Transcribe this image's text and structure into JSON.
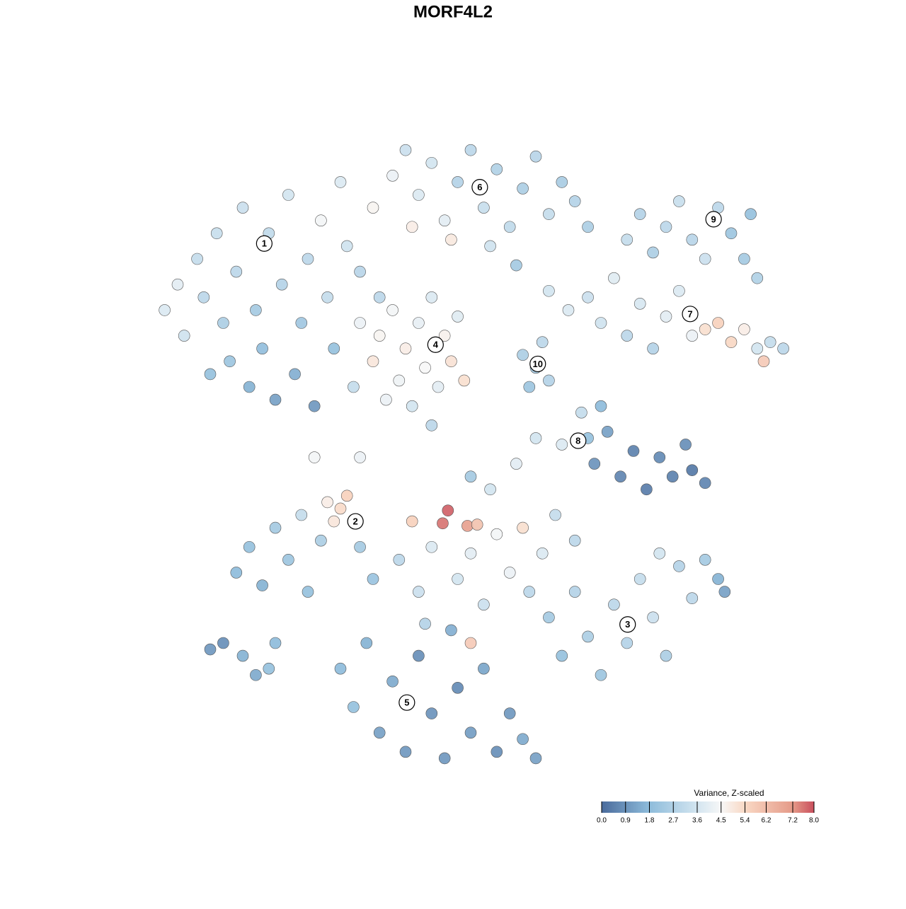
{
  "chart_data": {
    "type": "scatter",
    "title": "MORF4L2",
    "xlim": [
      0,
      100
    ],
    "ylim": [
      0,
      100
    ],
    "color_label": "Variance, Z-scaled",
    "colorbar_lim": [
      0,
      8
    ],
    "colorbar_ticks": [
      {
        "value": 0,
        "label": "0.0"
      },
      0.9,
      1.8,
      2.7,
      3.6,
      4.5,
      5.4,
      6.2,
      7.2,
      {
        "value": 8,
        "label": "8.0"
      }
    ],
    "colorscale": [
      {
        "value": 0,
        "color": "#4a6b9c"
      },
      {
        "value": 1.8,
        "color": "#8ebcdb"
      },
      {
        "value": 3.6,
        "color": "#d3e5f0"
      },
      {
        "value": 4.5,
        "color": "#f7f7f7"
      },
      {
        "value": 5.4,
        "color": "#f9d8c4"
      },
      {
        "value": 7.2,
        "color": "#e59a88"
      },
      {
        "value": 8,
        "color": "#c94f5d"
      }
    ],
    "clusters": [
      {
        "label": "1",
        "x": 18.3,
        "y": 82.4
      },
      {
        "label": "2",
        "x": 32.3,
        "y": 39.0
      },
      {
        "label": "3",
        "x": 74.1,
        "y": 22.9
      },
      {
        "label": "4",
        "x": 44.6,
        "y": 66.6
      },
      {
        "label": "5",
        "x": 40.2,
        "y": 10.7
      },
      {
        "label": "6",
        "x": 51.4,
        "y": 91.2
      },
      {
        "label": "7",
        "x": 83.7,
        "y": 71.4
      },
      {
        "label": "8",
        "x": 66.5,
        "y": 51.6
      },
      {
        "label": "9",
        "x": 87.3,
        "y": 86.2
      },
      {
        "label": "10",
        "x": 60.3,
        "y": 63.6
      }
    ],
    "points": [
      {
        "x": 3,
        "y": 72,
        "value": 3.8
      },
      {
        "x": 5,
        "y": 76,
        "value": 4.0
      },
      {
        "x": 6,
        "y": 68,
        "value": 3.5
      },
      {
        "x": 8,
        "y": 80,
        "value": 3.2
      },
      {
        "x": 9,
        "y": 74,
        "value": 3.0
      },
      {
        "x": 11,
        "y": 84,
        "value": 3.3
      },
      {
        "x": 12,
        "y": 70,
        "value": 2.6
      },
      {
        "x": 13,
        "y": 64,
        "value": 2.2
      },
      {
        "x": 14,
        "y": 78,
        "value": 3.0
      },
      {
        "x": 15,
        "y": 88,
        "value": 3.4
      },
      {
        "x": 16,
        "y": 60,
        "value": 1.6
      },
      {
        "x": 17,
        "y": 72,
        "value": 2.4
      },
      {
        "x": 18,
        "y": 66,
        "value": 1.9
      },
      {
        "x": 19,
        "y": 84,
        "value": 3.1
      },
      {
        "x": 20,
        "y": 58,
        "value": 1.2
      },
      {
        "x": 21,
        "y": 76,
        "value": 2.8
      },
      {
        "x": 22,
        "y": 90,
        "value": 3.6
      },
      {
        "x": 23,
        "y": 62,
        "value": 1.5
      },
      {
        "x": 24,
        "y": 70,
        "value": 2.3
      },
      {
        "x": 25,
        "y": 80,
        "value": 3.0
      },
      {
        "x": 26,
        "y": 57,
        "value": 1.0
      },
      {
        "x": 27,
        "y": 86,
        "value": 4.4
      },
      {
        "x": 28,
        "y": 74,
        "value": 3.2
      },
      {
        "x": 29,
        "y": 66,
        "value": 2.0
      },
      {
        "x": 30,
        "y": 92,
        "value": 3.8
      },
      {
        "x": 31,
        "y": 82,
        "value": 3.5
      },
      {
        "x": 33,
        "y": 78,
        "value": 2.9
      },
      {
        "x": 35,
        "y": 88,
        "value": 4.6
      },
      {
        "x": 36,
        "y": 74,
        "value": 3.0
      },
      {
        "x": 38,
        "y": 93,
        "value": 4.2
      },
      {
        "x": 32,
        "y": 60,
        "value": 3.2
      },
      {
        "x": 10,
        "y": 62,
        "value": 2.0
      },
      {
        "x": 40,
        "y": 97,
        "value": 3.4
      },
      {
        "x": 42,
        "y": 90,
        "value": 3.8
      },
      {
        "x": 44,
        "y": 95,
        "value": 3.6
      },
      {
        "x": 46,
        "y": 86,
        "value": 4.0
      },
      {
        "x": 48,
        "y": 92,
        "value": 2.8
      },
      {
        "x": 50,
        "y": 97,
        "value": 3.0
      },
      {
        "x": 52,
        "y": 88,
        "value": 3.3
      },
      {
        "x": 54,
        "y": 94,
        "value": 2.7
      },
      {
        "x": 56,
        "y": 85,
        "value": 3.1
      },
      {
        "x": 58,
        "y": 91,
        "value": 2.6
      },
      {
        "x": 60,
        "y": 96,
        "value": 2.9
      },
      {
        "x": 62,
        "y": 87,
        "value": 3.2
      },
      {
        "x": 64,
        "y": 92,
        "value": 2.5
      },
      {
        "x": 66,
        "y": 89,
        "value": 2.8
      },
      {
        "x": 68,
        "y": 85,
        "value": 2.6
      },
      {
        "x": 41,
        "y": 85,
        "value": 4.8
      },
      {
        "x": 47,
        "y": 83,
        "value": 4.9
      },
      {
        "x": 53,
        "y": 82,
        "value": 3.5
      },
      {
        "x": 57,
        "y": 79,
        "value": 2.4
      },
      {
        "x": 33,
        "y": 70,
        "value": 4.2
      },
      {
        "x": 35,
        "y": 64,
        "value": 5.0
      },
      {
        "x": 36,
        "y": 68,
        "value": 4.6
      },
      {
        "x": 38,
        "y": 72,
        "value": 4.4
      },
      {
        "x": 39,
        "y": 61,
        "value": 4.3
      },
      {
        "x": 40,
        "y": 66,
        "value": 4.8
      },
      {
        "x": 42,
        "y": 70,
        "value": 4.1
      },
      {
        "x": 43,
        "y": 63,
        "value": 4.5
      },
      {
        "x": 44,
        "y": 74,
        "value": 3.8
      },
      {
        "x": 45,
        "y": 60,
        "value": 4.0
      },
      {
        "x": 46,
        "y": 68,
        "value": 4.7
      },
      {
        "x": 47,
        "y": 64,
        "value": 5.1
      },
      {
        "x": 48,
        "y": 71,
        "value": 3.9
      },
      {
        "x": 37,
        "y": 58,
        "value": 4.2
      },
      {
        "x": 41,
        "y": 57,
        "value": 3.6
      },
      {
        "x": 49,
        "y": 61,
        "value": 5.2
      },
      {
        "x": 74,
        "y": 83,
        "value": 3.2
      },
      {
        "x": 76,
        "y": 87,
        "value": 2.8
      },
      {
        "x": 78,
        "y": 81,
        "value": 2.6
      },
      {
        "x": 80,
        "y": 85,
        "value": 3.0
      },
      {
        "x": 82,
        "y": 89,
        "value": 3.3
      },
      {
        "x": 84,
        "y": 83,
        "value": 2.9
      },
      {
        "x": 86,
        "y": 80,
        "value": 3.4
      },
      {
        "x": 88,
        "y": 88,
        "value": 3.0
      },
      {
        "x": 90,
        "y": 84,
        "value": 2.2
      },
      {
        "x": 92,
        "y": 80,
        "value": 2.4
      },
      {
        "x": 93,
        "y": 87,
        "value": 2.0
      },
      {
        "x": 94,
        "y": 77,
        "value": 2.7
      },
      {
        "x": 62,
        "y": 75,
        "value": 3.6
      },
      {
        "x": 65,
        "y": 72,
        "value": 3.8
      },
      {
        "x": 68,
        "y": 74,
        "value": 3.4
      },
      {
        "x": 70,
        "y": 70,
        "value": 3.5
      },
      {
        "x": 72,
        "y": 77,
        "value": 3.9
      },
      {
        "x": 74,
        "y": 68,
        "value": 3.0
      },
      {
        "x": 76,
        "y": 73,
        "value": 3.7
      },
      {
        "x": 78,
        "y": 66,
        "value": 2.8
      },
      {
        "x": 80,
        "y": 71,
        "value": 4.0
      },
      {
        "x": 82,
        "y": 75,
        "value": 3.8
      },
      {
        "x": 84,
        "y": 68,
        "value": 4.2
      },
      {
        "x": 86,
        "y": 69,
        "value": 5.2
      },
      {
        "x": 88,
        "y": 70,
        "value": 5.6
      },
      {
        "x": 90,
        "y": 67,
        "value": 5.4
      },
      {
        "x": 92,
        "y": 69,
        "value": 4.8
      },
      {
        "x": 94,
        "y": 66,
        "value": 3.6
      },
      {
        "x": 96,
        "y": 67,
        "value": 3.2
      },
      {
        "x": 98,
        "y": 66,
        "value": 3.0
      },
      {
        "x": 95,
        "y": 64,
        "value": 5.8
      },
      {
        "x": 58,
        "y": 65,
        "value": 2.6
      },
      {
        "x": 60,
        "y": 63,
        "value": 2.4
      },
      {
        "x": 62,
        "y": 61,
        "value": 2.8
      },
      {
        "x": 59,
        "y": 60,
        "value": 2.2
      },
      {
        "x": 61,
        "y": 67,
        "value": 3.0
      },
      {
        "x": 67,
        "y": 56,
        "value": 3.2
      },
      {
        "x": 68,
        "y": 52,
        "value": 2.0
      },
      {
        "x": 69,
        "y": 48,
        "value": 0.9
      },
      {
        "x": 71,
        "y": 53,
        "value": 1.2
      },
      {
        "x": 73,
        "y": 46,
        "value": 0.6
      },
      {
        "x": 75,
        "y": 50,
        "value": 0.5
      },
      {
        "x": 77,
        "y": 44,
        "value": 0.4
      },
      {
        "x": 79,
        "y": 49,
        "value": 0.7
      },
      {
        "x": 81,
        "y": 46,
        "value": 0.5
      },
      {
        "x": 83,
        "y": 51,
        "value": 0.8
      },
      {
        "x": 84,
        "y": 47,
        "value": 0.3
      },
      {
        "x": 86,
        "y": 45,
        "value": 0.6
      },
      {
        "x": 70,
        "y": 57,
        "value": 1.8
      },
      {
        "x": 64,
        "y": 51,
        "value": 3.8
      },
      {
        "x": 60,
        "y": 52,
        "value": 3.6
      },
      {
        "x": 14,
        "y": 31,
        "value": 1.8
      },
      {
        "x": 16,
        "y": 35,
        "value": 2.0
      },
      {
        "x": 18,
        "y": 29,
        "value": 1.6
      },
      {
        "x": 20,
        "y": 38,
        "value": 2.4
      },
      {
        "x": 22,
        "y": 33,
        "value": 2.2
      },
      {
        "x": 24,
        "y": 40,
        "value": 3.2
      },
      {
        "x": 25,
        "y": 28,
        "value": 2.0
      },
      {
        "x": 27,
        "y": 36,
        "value": 2.6
      },
      {
        "x": 28,
        "y": 42,
        "value": 4.8
      },
      {
        "x": 30,
        "y": 41,
        "value": 5.3
      },
      {
        "x": 31,
        "y": 43,
        "value": 5.6
      },
      {
        "x": 29,
        "y": 39,
        "value": 5.0
      },
      {
        "x": 33,
        "y": 35,
        "value": 2.4
      },
      {
        "x": 35,
        "y": 30,
        "value": 2.1
      },
      {
        "x": 39,
        "y": 33,
        "value": 3.0
      },
      {
        "x": 41,
        "y": 39,
        "value": 5.6
      },
      {
        "x": 42,
        "y": 28,
        "value": 3.4
      },
      {
        "x": 44,
        "y": 35,
        "value": 3.8
      },
      {
        "x": 45.7,
        "y": 38.7,
        "value": 7.6
      },
      {
        "x": 46.5,
        "y": 40.7,
        "value": 7.8
      },
      {
        "x": 49.5,
        "y": 38.3,
        "value": 7.0
      },
      {
        "x": 51,
        "y": 38.5,
        "value": 6.0
      },
      {
        "x": 48,
        "y": 30,
        "value": 3.6
      },
      {
        "x": 50,
        "y": 34,
        "value": 4.0
      },
      {
        "x": 52,
        "y": 26,
        "value": 3.4
      },
      {
        "x": 54,
        "y": 37,
        "value": 4.4
      },
      {
        "x": 56,
        "y": 31,
        "value": 4.2
      },
      {
        "x": 58,
        "y": 38,
        "value": 5.2
      },
      {
        "x": 59,
        "y": 28,
        "value": 3.0
      },
      {
        "x": 61,
        "y": 34,
        "value": 3.8
      },
      {
        "x": 63,
        "y": 40,
        "value": 3.2
      },
      {
        "x": 66,
        "y": 36,
        "value": 3.0
      },
      {
        "x": 53,
        "y": 44,
        "value": 3.6
      },
      {
        "x": 57,
        "y": 48,
        "value": 4.0
      },
      {
        "x": 50,
        "y": 20,
        "value": 5.8
      },
      {
        "x": 43,
        "y": 23,
        "value": 2.8
      },
      {
        "x": 50,
        "y": 46,
        "value": 2.4
      },
      {
        "x": 62,
        "y": 24,
        "value": 2.4
      },
      {
        "x": 64,
        "y": 18,
        "value": 2.0
      },
      {
        "x": 66,
        "y": 28,
        "value": 2.8
      },
      {
        "x": 68,
        "y": 21,
        "value": 2.6
      },
      {
        "x": 70,
        "y": 15,
        "value": 2.2
      },
      {
        "x": 72,
        "y": 26,
        "value": 3.0
      },
      {
        "x": 74,
        "y": 20,
        "value": 2.8
      },
      {
        "x": 76,
        "y": 30,
        "value": 3.2
      },
      {
        "x": 78,
        "y": 24,
        "value": 3.4
      },
      {
        "x": 80,
        "y": 18,
        "value": 2.6
      },
      {
        "x": 82,
        "y": 32,
        "value": 2.8
      },
      {
        "x": 84,
        "y": 27,
        "value": 3.0
      },
      {
        "x": 86,
        "y": 33,
        "value": 2.4
      },
      {
        "x": 88,
        "y": 30,
        "value": 1.6
      },
      {
        "x": 89,
        "y": 28,
        "value": 1.2
      },
      {
        "x": 79,
        "y": 34,
        "value": 3.6
      },
      {
        "x": 30,
        "y": 16,
        "value": 1.8
      },
      {
        "x": 32,
        "y": 10,
        "value": 2.0
      },
      {
        "x": 34,
        "y": 20,
        "value": 1.6
      },
      {
        "x": 36,
        "y": 6,
        "value": 1.2
      },
      {
        "x": 38,
        "y": 14,
        "value": 1.4
      },
      {
        "x": 40,
        "y": 3,
        "value": 1.0
      },
      {
        "x": 42,
        "y": 18,
        "value": 0.8
      },
      {
        "x": 44,
        "y": 9,
        "value": 0.9
      },
      {
        "x": 46,
        "y": 2,
        "value": 1.0
      },
      {
        "x": 48,
        "y": 13,
        "value": 0.7
      },
      {
        "x": 50,
        "y": 6,
        "value": 1.1
      },
      {
        "x": 52,
        "y": 16,
        "value": 1.3
      },
      {
        "x": 54,
        "y": 3,
        "value": 0.8
      },
      {
        "x": 56,
        "y": 9,
        "value": 1.0
      },
      {
        "x": 58,
        "y": 5,
        "value": 1.4
      },
      {
        "x": 60,
        "y": 2,
        "value": 1.2
      },
      {
        "x": 47,
        "y": 22,
        "value": 1.5
      },
      {
        "x": 10,
        "y": 19,
        "value": 1.0
      },
      {
        "x": 12,
        "y": 20,
        "value": 0.8
      },
      {
        "x": 15,
        "y": 18,
        "value": 1.6
      },
      {
        "x": 17,
        "y": 15,
        "value": 1.4
      },
      {
        "x": 19,
        "y": 16,
        "value": 2.0
      },
      {
        "x": 20,
        "y": 20,
        "value": 1.8
      },
      {
        "x": 26,
        "y": 49,
        "value": 4.4
      },
      {
        "x": 33,
        "y": 49,
        "value": 4.2
      },
      {
        "x": 44,
        "y": 54,
        "value": 3.0
      }
    ]
  }
}
